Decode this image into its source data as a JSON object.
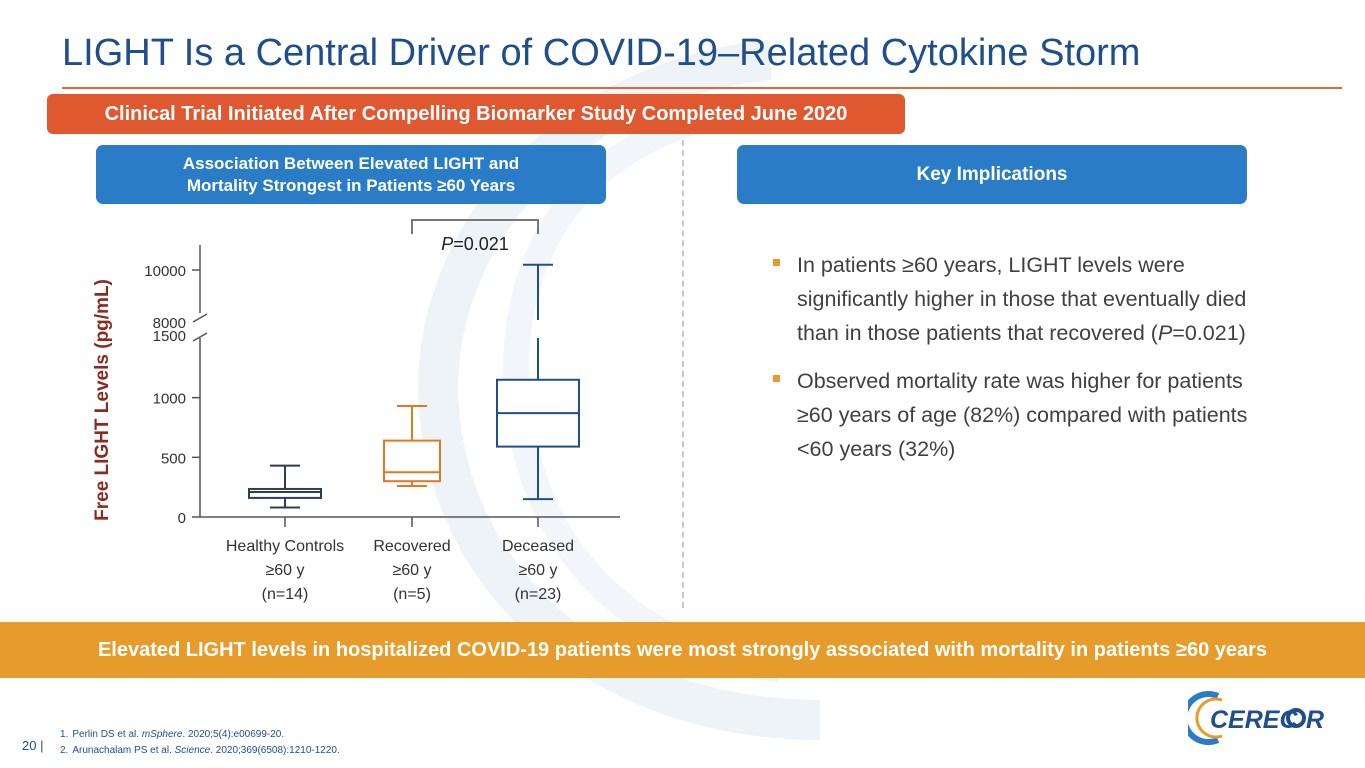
{
  "title": "LIGHT Is a Central Driver of COVID-19–Related Cytokine Storm",
  "subtitle_pill": "Clinical Trial Initiated After Compelling Biomarker Study Completed June 2020",
  "assoc_pill": {
    "line1": "Association Between Elevated LIGHT and",
    "line2": "Mortality Strongest in Patients ≥60 Years"
  },
  "key_pill": "Key Implications",
  "bullets": [
    {
      "before": "In patients ≥60 years, LIGHT levels were significantly higher in those that eventually died than in those patients that recovered (",
      "italic": "P",
      "after": "=0.021)"
    },
    {
      "before": "Observed mortality rate was higher for patients ≥60 years of age (82%) compared with patients <60 years (32%)",
      "italic": "",
      "after": ""
    }
  ],
  "banner": "Elevated LIGHT levels in hospitalized COVID-19 patients were most strongly associated with mortality in patients ≥60 years",
  "page_number": "20 |",
  "footnotes": [
    {
      "num": "1.",
      "before": "Perlin DS et al. ",
      "italic": "mSphere",
      "after": ". 2020;5(4):e00699-20."
    },
    {
      "num": "2.",
      "before": "Arunachalam PS et al. ",
      "italic": "Science",
      "after": ". 2020;369(6508):1210-1220."
    }
  ],
  "logo_text": "CEREC",
  "logo_text_end": "R",
  "colors": {
    "title": "#1f4e8c",
    "orange_pill": "#e0582f",
    "blue_pill": "#2a7cc7",
    "banner": "#e79b2a",
    "bullet_marker": "#e79b2a",
    "ylabel": "#8b2a1e",
    "box_healthy": "#2d3e50",
    "box_recovered": "#e07a20",
    "box_deceased": "#1f4e8c"
  },
  "chart_data": {
    "type": "box",
    "ylabel": "Free LIGHT Levels (pg/mL)",
    "yaxis_lower": {
      "range": [
        0,
        1500
      ],
      "ticks": [
        0,
        500,
        1000,
        1500
      ]
    },
    "yaxis_upper": {
      "range": [
        8000,
        10000
      ],
      "ticks": [
        8000,
        10000
      ]
    },
    "axis_break": true,
    "categories": [
      {
        "line1": "Healthy Controls",
        "line2": "≥60 y",
        "line3": "(n=14)"
      },
      {
        "line1": "Recovered",
        "line2": "≥60 y",
        "line3": "(n=5)"
      },
      {
        "line1": "Deceased",
        "line2": "≥60 y",
        "line3": "(n=23)"
      }
    ],
    "series": [
      {
        "min": 80,
        "q1": 160,
        "median": 210,
        "q3": 235,
        "max": 430
      },
      {
        "min": 260,
        "q1": 300,
        "median": 375,
        "q3": 640,
        "max": 930
      },
      {
        "min": 150,
        "q1": 590,
        "median": 870,
        "q3": 1150,
        "max": 10200
      }
    ],
    "annotation": {
      "italic": "P",
      "text": "=0.021"
    }
  }
}
